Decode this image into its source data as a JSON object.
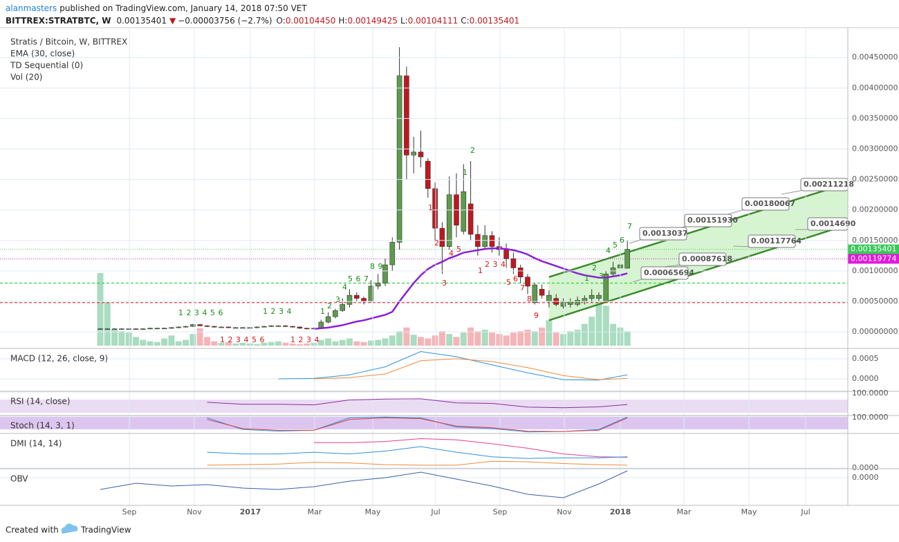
{
  "header": {
    "author": "alanmasters",
    "published": "published on TradingView.com, January 14, 2018 07:50 VET",
    "symbol": "BITTREX:STRATBTC, W",
    "last": "0.00135401",
    "arrow": "▼",
    "change": "−0.00003756 (−2.7%)",
    "ohlc": [
      {
        "label": "O:",
        "value": "0.00104450"
      },
      {
        "label": "H:",
        "value": "0.00149425"
      },
      {
        "label": "L:",
        "value": "0.00104111"
      },
      {
        "label": "C:",
        "value": "0.00135401"
      }
    ]
  },
  "chart_data": {
    "type": "candlestick",
    "title": "Stratis / Bitcoin, W, BITTREX",
    "legend": [
      "EMA (30, close)",
      "TD Sequential (0)",
      "Vol (20)"
    ],
    "ylim": [
      -0.00026,
      0.00499
    ],
    "yticks": [
      {
        "value": 0.0045,
        "label": "0.00450000"
      },
      {
        "value": 0.004,
        "label": "0.00400000"
      },
      {
        "value": 0.0035,
        "label": "0.00350000"
      },
      {
        "value": 0.003,
        "label": "0.00300000"
      },
      {
        "value": 0.0025,
        "label": "0.00250000"
      },
      {
        "value": 0.002,
        "label": "0.00200000"
      },
      {
        "value": 0.0015,
        "label": "0.00150000"
      },
      {
        "value": 0.001,
        "label": "0.00100000"
      },
      {
        "value": 0.0005,
        "label": "0.00050000"
      },
      {
        "value": 0,
        "label": "0.00000000"
      }
    ],
    "xtick_labels": [
      "Sep",
      "Nov",
      "2017",
      "Mar",
      "May",
      "Jul",
      "Sep",
      "Nov",
      "2018",
      "Mar",
      "May",
      "Jul"
    ],
    "grid": true,
    "up_color": "#5f9a4d",
    "down_color": "#c0181f",
    "ema_color": "#8a1fd6",
    "vol_up_color": "#a9dcc0",
    "vol_down_color": "#f5b5b8",
    "open": [
      5e-05,
      5e-05,
      5e-05,
      5e-05,
      5e-05,
      5e-05,
      5e-05,
      5e-05,
      6e-05,
      6e-05,
      6e-05,
      7e-05,
      8e-05,
      9e-05,
      0.00012,
      0.0001,
      9e-05,
      8e-05,
      8e-05,
      7e-05,
      7e-05,
      7e-05,
      7e-05,
      8e-05,
      9e-05,
      0.0001,
      0.0001,
      9e-05,
      8e-05,
      6e-05,
      5e-05,
      6e-05,
      0.00016,
      0.00025,
      0.00035,
      0.00045,
      0.0006,
      0.00055,
      0.0005,
      0.00075,
      0.0008,
      0.0011,
      0.00147,
      0.0042,
      0.0029,
      0.00295,
      0.0028,
      0.00235,
      0.0017,
      0.0014,
      0.00225,
      0.00165,
      0.0021,
      0.0016,
      0.0014,
      0.00158,
      0.0014,
      0.00135,
      0.0012,
      0.00105,
      0.0009,
      0.00048,
      0.0007,
      0.0005,
      0.00055,
      0.00042,
      0.00045,
      0.00045,
      0.0005,
      0.00055,
      0.00055,
      0.0005,
      0.00095,
      0.00105,
      0.0010445
    ],
    "high": [
      6e-05,
      6e-05,
      6e-05,
      6e-05,
      6e-05,
      6e-05,
      6e-05,
      7e-05,
      7e-05,
      7e-05,
      8e-05,
      9e-05,
      0.0001,
      0.00013,
      0.00013,
      0.00011,
      0.0001,
      9e-05,
      9e-05,
      8e-05,
      8e-05,
      8e-05,
      9e-05,
      0.0001,
      0.00011,
      0.00011,
      0.00011,
      0.0001,
      9e-05,
      7e-05,
      7e-05,
      0.0002,
      0.00032,
      0.00038,
      0.00055,
      0.0007,
      0.00065,
      0.00058,
      0.00085,
      0.00095,
      0.0012,
      0.00155,
      0.00467,
      0.00435,
      0.0032,
      0.0033,
      0.00285,
      0.00245,
      0.0018,
      0.00255,
      0.0026,
      0.00275,
      0.0028,
      0.00175,
      0.00175,
      0.00165,
      0.00155,
      0.00145,
      0.0013,
      0.0011,
      0.00095,
      0.0008,
      0.00078,
      0.00068,
      0.00062,
      0.00055,
      0.00055,
      0.00058,
      0.0006,
      0.0007,
      0.00065,
      0.001,
      0.00115,
      0.00135,
      0.00149425
    ],
    "low": [
      4e-05,
      4e-05,
      4e-05,
      4e-05,
      4e-05,
      4e-05,
      4e-05,
      4e-05,
      5e-05,
      5e-05,
      5e-05,
      6e-05,
      7e-05,
      8e-05,
      9e-05,
      8e-05,
      7e-05,
      7e-05,
      6e-05,
      6e-05,
      6e-05,
      6e-05,
      6e-05,
      7e-05,
      8e-05,
      9e-05,
      8e-05,
      7e-05,
      5e-05,
      4e-05,
      4e-05,
      5e-05,
      0.00014,
      0.00022,
      0.00033,
      0.0004,
      0.0005,
      0.00045,
      0.00048,
      0.0007,
      0.00075,
      0.001,
      0.00135,
      0.0025,
      0.0026,
      0.0027,
      0.0022,
      0.0015,
      0.00095,
      0.00135,
      0.00155,
      0.0016,
      0.0015,
      0.00125,
      0.00135,
      0.0013,
      0.00125,
      0.00105,
      0.00095,
      0.0008,
      0.00062,
      0.00045,
      0.00055,
      0.0004,
      0.00042,
      0.00038,
      0.0004,
      0.00042,
      0.00045,
      0.00048,
      0.0005,
      0.00048,
      0.0009,
      0.001,
      0.00104111
    ],
    "close": [
      5e-05,
      5e-05,
      5e-05,
      5e-05,
      5e-05,
      5e-05,
      5e-05,
      6e-05,
      6e-05,
      6e-05,
      7e-05,
      8e-05,
      9e-05,
      0.00012,
      0.0001,
      9e-05,
      8e-05,
      8e-05,
      7e-05,
      7e-05,
      7e-05,
      7e-05,
      8e-05,
      9e-05,
      0.0001,
      0.0001,
      9e-05,
      8e-05,
      6e-05,
      5e-05,
      6e-05,
      0.00016,
      0.00025,
      0.00035,
      0.00045,
      0.0006,
      0.00055,
      0.0005,
      0.00075,
      0.0008,
      0.0011,
      0.00147,
      0.0042,
      0.0029,
      0.00295,
      0.00287,
      0.00235,
      0.0017,
      0.0014,
      0.00225,
      0.00175,
      0.0023,
      0.0016,
      0.0014,
      0.00158,
      0.0014,
      0.00135,
      0.0012,
      0.00105,
      0.0009,
      0.00075,
      0.00077,
      0.0006,
      0.0006,
      0.00045,
      0.0005,
      0.0005,
      0.00052,
      0.00055,
      0.0006,
      0.0006,
      0.00095,
      0.00105,
      0.0011,
      0.00135401
    ],
    "ema": [
      null,
      null,
      null,
      null,
      null,
      null,
      null,
      null,
      null,
      null,
      null,
      null,
      null,
      null,
      null,
      null,
      null,
      null,
      null,
      null,
      null,
      null,
      null,
      null,
      null,
      null,
      null,
      null,
      null,
      null,
      5e-05,
      6e-05,
      7e-05,
      9e-05,
      0.00011,
      0.00014,
      0.00017,
      0.00019,
      0.00022,
      0.00025,
      0.00028,
      0.00033,
      0.0005,
      0.00065,
      0.0008,
      0.00093,
      0.00103,
      0.0011,
      0.00115,
      0.00121,
      0.00125,
      0.0013,
      0.00132,
      0.00134,
      0.00136,
      0.00137,
      0.00137,
      0.00136,
      0.00134,
      0.00131,
      0.00127,
      0.00121,
      0.00116,
      0.00112,
      0.00108,
      0.00104,
      0.001,
      0.00096,
      0.00093,
      0.00091,
      0.00089,
      0.00089,
      0.00091,
      0.00093,
      0.00096
    ],
    "volume": [
      100,
      60,
      22,
      20,
      18,
      12,
      8,
      6,
      5,
      10,
      14,
      6,
      8,
      16,
      24,
      12,
      6,
      4,
      5,
      3,
      4,
      3,
      2,
      4,
      5,
      6,
      4,
      3,
      2,
      3,
      4,
      8,
      10,
      6,
      8,
      10,
      6,
      5,
      7,
      8,
      10,
      14,
      20,
      25,
      15,
      12,
      10,
      14,
      20,
      16,
      12,
      18,
      25,
      20,
      22,
      18,
      16,
      14,
      18,
      20,
      22,
      20,
      25,
      35,
      18,
      16,
      20,
      22,
      30,
      40,
      60,
      55,
      30,
      25,
      20
    ],
    "price_labels": [
      {
        "value": 0.00135401,
        "label": "0.00135401",
        "color": "#3cc85a"
      },
      {
        "value": 0.00119774,
        "label": "0.00119774",
        "color": "#e01ad8"
      }
    ],
    "levels": [
      {
        "value": 0.0008,
        "color": "#2fd23a"
      },
      {
        "value": 0.00048,
        "color": "#e83c3c"
      }
    ],
    "trendlines": [
      {
        "points": [
          [
            63,
            0.0009
          ],
          [
            105,
            0.00244
          ]
        ],
        "color": "#3a8a2a"
      },
      {
        "points": [
          [
            63,
            0.00019
          ],
          [
            105,
            0.00176
          ]
        ],
        "color": "#3a8a2a"
      }
    ],
    "callouts": [
      "0.00211218",
      "0.00180067",
      "0.00151930",
      "0.0013037",
      "0.0014690",
      "0.00117764",
      "0.00087618",
      "0.00065694"
    ],
    "td_up": [
      "1 2 3 4 5 6",
      "1 2 3 4",
      "1",
      "2",
      "3",
      "4",
      "5 6 7",
      "8 9",
      "1",
      "2",
      "1",
      "2",
      "3",
      "4",
      "5",
      "6",
      "7"
    ],
    "td_down": [
      "1 2 3 4 5 6",
      "1 2 3 4",
      "1",
      "2",
      "3",
      "4",
      "5",
      "1",
      "2 3 4",
      "5",
      "6",
      "7",
      "8",
      "9"
    ],
    "indicators": [
      {
        "title": "MACD (12, 26, close, 9)",
        "ylim": [
          -0.00031,
          0.00074
        ],
        "yticks": [
          {
            "value": 0.0005,
            "label": "0.0005"
          },
          {
            "value": 0,
            "label": "0.0000"
          }
        ],
        "series": [
          {
            "color": "#2e8fe0",
            "values": [
              null,
              null,
              null,
              null,
              null,
              0,
              1e-05,
              0.0001,
              0.0003,
              0.00068,
              0.00055,
              0.00035,
              0.00015,
              -2e-05,
              -3e-05,
              0.0001
            ]
          },
          {
            "color": "#f08a3a",
            "values": [
              null,
              null,
              null,
              null,
              null,
              null,
              0,
              3e-05,
              0.00012,
              0.00045,
              0.0005,
              0.00043,
              0.00028,
              8e-05,
              -2e-05,
              1e-05
            ]
          }
        ]
      },
      {
        "title": "RSI (14, close)",
        "ylim": [
          20,
          100
        ],
        "yticks": [
          {
            "value": 100,
            "label": "100.0000"
          }
        ],
        "series": [
          {
            "color": "#8b2c9c",
            "values": [
              null,
              null,
              null,
              64,
              57,
              57,
              55,
              72,
              75,
              76,
              62,
              60,
              47,
              45,
              48,
              56
            ]
          }
        ]
      },
      {
        "title": "Stoch (14, 3, 1)",
        "ylim": [
          0,
          100
        ],
        "yticks": [
          {
            "value": 100,
            "label": "100.0000"
          }
        ],
        "series": [
          {
            "color": "#2e8fe0",
            "values": [
              null,
              null,
              null,
              90,
              20,
              10,
              15,
              90,
              95,
              90,
              35,
              25,
              5,
              8,
              20,
              95
            ]
          },
          {
            "color": "#e04040",
            "values": [
              null,
              null,
              null,
              80,
              25,
              15,
              15,
              80,
              90,
              85,
              40,
              30,
              10,
              8,
              15,
              90
            ]
          }
        ]
      },
      {
        "title": "DMI (14, 14)",
        "ylim": [
          0,
          60
        ],
        "yticks": [
          {
            "value": 0,
            "label": "0.0000"
          }
        ],
        "series": [
          {
            "color": "#e83c8c",
            "values": [
              null,
              null,
              null,
              null,
              null,
              null,
              45,
              45,
              47,
              52,
              50,
              43,
              35,
              25,
              20,
              19
            ]
          },
          {
            "color": "#2e8fe0",
            "values": [
              null,
              null,
              null,
              28,
              25,
              25,
              28,
              25,
              30,
              38,
              28,
              20,
              17,
              18,
              18,
              20
            ]
          },
          {
            "color": "#f08a3a",
            "values": [
              null,
              null,
              null,
              5,
              6,
              7,
              10,
              9,
              6,
              5,
              5,
              12,
              11,
              8,
              6,
              5
            ]
          }
        ]
      },
      {
        "title": "OBV",
        "ylim": [
          -39,
          12
        ],
        "yticks": [
          {
            "value": 0,
            "label": "0.0000"
          }
        ],
        "series": [
          {
            "color": "#3a5fa8",
            "values": [
              -17,
              -8,
              -12,
              -10,
              -15,
              -17,
              -13,
              -5,
              0,
              8,
              -2,
              -12,
              -24,
              -29,
              -9,
              10
            ]
          }
        ]
      }
    ]
  },
  "footer": {
    "created": "Created with",
    "brand": "TradingView"
  }
}
